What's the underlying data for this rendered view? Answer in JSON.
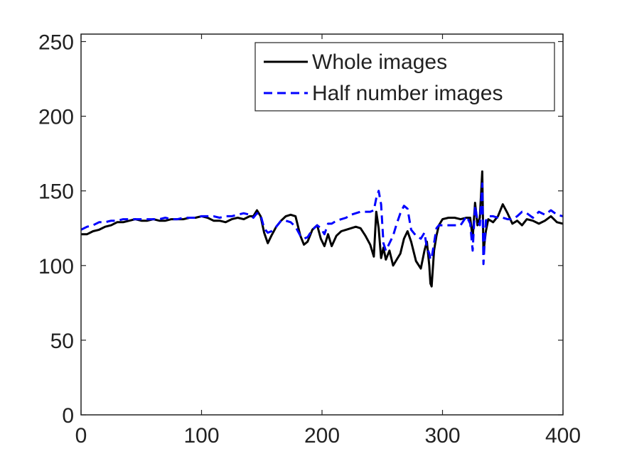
{
  "chart_data": {
    "type": "line",
    "title": "",
    "xlabel": "",
    "ylabel": "",
    "xlim": [
      0,
      400
    ],
    "ylim": [
      0,
      255
    ],
    "xticks": [
      0,
      100,
      200,
      300,
      400
    ],
    "yticks": [
      0,
      50,
      100,
      150,
      200,
      250
    ],
    "grid": false,
    "legend_position": "top-right",
    "series": [
      {
        "name": "Whole images",
        "color": "#000000",
        "style": "solid",
        "x": [
          0,
          5,
          10,
          15,
          20,
          25,
          30,
          35,
          40,
          45,
          50,
          55,
          60,
          65,
          70,
          75,
          80,
          85,
          90,
          95,
          100,
          105,
          110,
          115,
          120,
          125,
          130,
          135,
          140,
          143,
          146,
          149,
          152,
          155,
          158,
          162,
          166,
          170,
          174,
          178,
          182,
          185,
          188,
          192,
          196,
          199,
          202,
          205,
          208,
          212,
          216,
          220,
          224,
          228,
          232,
          236,
          240,
          243,
          245,
          247,
          249,
          251,
          253,
          256,
          259,
          262,
          265,
          268,
          271,
          274,
          278,
          282,
          285,
          287,
          289,
          290,
          291,
          293,
          295,
          297,
          300,
          305,
          310,
          315,
          320,
          323,
          325,
          327,
          329,
          331,
          333,
          334,
          336,
          338,
          342,
          346,
          350,
          354,
          358,
          362,
          366,
          370,
          375,
          380,
          385,
          390,
          395,
          400
        ],
        "values": [
          121,
          121,
          123,
          124,
          126,
          127,
          129,
          129,
          130,
          131,
          130,
          130,
          131,
          130,
          130,
          131,
          131,
          131,
          132,
          132,
          133,
          132,
          130,
          130,
          129,
          131,
          132,
          131,
          133,
          133,
          137,
          133,
          122,
          115,
          120,
          126,
          130,
          133,
          134,
          133,
          120,
          114,
          116,
          124,
          127,
          118,
          113,
          121,
          113,
          120,
          123,
          124,
          125,
          126,
          125,
          120,
          114,
          106,
          136,
          125,
          105,
          112,
          104,
          110,
          100,
          104,
          108,
          118,
          123,
          116,
          103,
          98,
          110,
          116,
          100,
          88,
          86,
          110,
          120,
          127,
          131,
          132,
          132,
          131,
          132,
          132,
          118,
          142,
          127,
          132,
          163,
          109,
          123,
          131,
          129,
          133,
          141,
          135,
          128,
          130,
          127,
          131,
          130,
          128,
          130,
          133,
          129,
          128
        ]
      },
      {
        "name": "Half number images",
        "color": "#0000ff",
        "style": "dashed",
        "x": [
          0,
          5,
          10,
          15,
          20,
          25,
          30,
          35,
          40,
          45,
          50,
          55,
          60,
          65,
          70,
          75,
          80,
          85,
          90,
          95,
          100,
          105,
          110,
          115,
          120,
          125,
          130,
          135,
          140,
          143,
          146,
          149,
          152,
          155,
          158,
          162,
          166,
          170,
          174,
          178,
          182,
          185,
          188,
          192,
          196,
          199,
          202,
          205,
          208,
          212,
          216,
          220,
          224,
          228,
          232,
          236,
          240,
          243,
          245,
          247,
          249,
          251,
          253,
          256,
          259,
          262,
          265,
          268,
          271,
          274,
          278,
          282,
          285,
          287,
          289,
          290,
          291,
          293,
          295,
          297,
          300,
          305,
          310,
          315,
          320,
          323,
          325,
          327,
          329,
          331,
          333,
          334,
          336,
          338,
          342,
          346,
          350,
          354,
          358,
          362,
          366,
          370,
          375,
          380,
          385,
          390,
          395,
          400
        ],
        "values": [
          124,
          126,
          127,
          129,
          129,
          130,
          130,
          131,
          131,
          131,
          131,
          131,
          131,
          131,
          132,
          131,
          131,
          132,
          132,
          132,
          133,
          133,
          133,
          132,
          133,
          133,
          134,
          135,
          134,
          132,
          135,
          134,
          125,
          122,
          123,
          126,
          130,
          130,
          129,
          126,
          120,
          118,
          119,
          124,
          127,
          125,
          121,
          128,
          128,
          130,
          131,
          132,
          134,
          135,
          136,
          136,
          136,
          137,
          145,
          150,
          141,
          115,
          110,
          115,
          120,
          128,
          135,
          140,
          138,
          124,
          120,
          118,
          122,
          112,
          108,
          104,
          105,
          115,
          125,
          127,
          127,
          127,
          127,
          127,
          133,
          128,
          110,
          140,
          130,
          127,
          155,
          101,
          130,
          133,
          133,
          132,
          132,
          131,
          131,
          133,
          136,
          135,
          132,
          136,
          134,
          137,
          134,
          133
        ]
      }
    ]
  }
}
